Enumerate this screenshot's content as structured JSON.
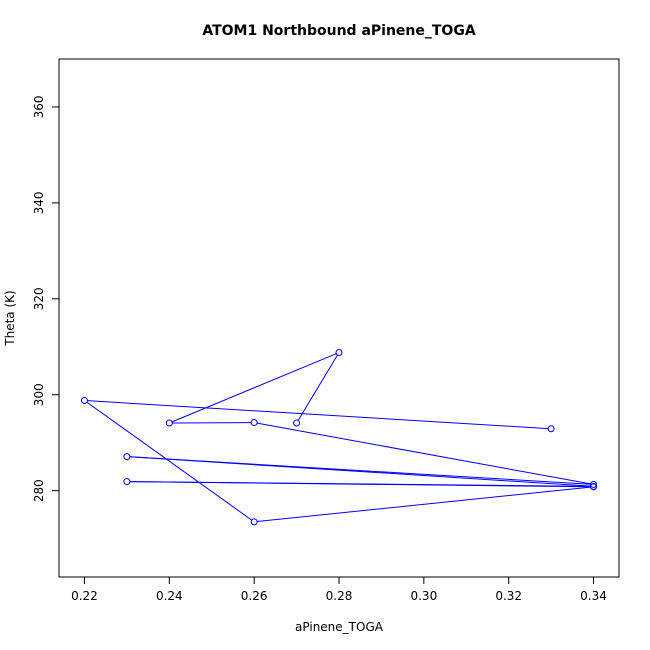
{
  "chart_data": {
    "type": "line",
    "title": "ATOM1 Northbound aPinene_TOGA",
    "xlabel": "aPinene_TOGA",
    "ylabel": "Theta (K)",
    "xlim": [
      0.214,
      0.346
    ],
    "ylim": [
      262,
      370
    ],
    "xticks": [
      "0.22",
      "0.24",
      "0.26",
      "0.28",
      "0.30",
      "0.32",
      "0.34"
    ],
    "yticks": [
      "280",
      "300",
      "320",
      "340",
      "360"
    ],
    "xtick_values": [
      0.22,
      0.24,
      0.26,
      0.28,
      0.3,
      0.32,
      0.34
    ],
    "ytick_values": [
      280,
      300,
      320,
      340,
      360
    ],
    "grid": false,
    "marker": "open-circle",
    "color": "#0000ff",
    "series": [
      {
        "x": [
          0.27,
          0.28,
          0.24,
          0.26,
          0.34,
          0.23,
          0.34,
          0.23,
          0.34,
          0.26,
          0.22,
          0.33
        ],
        "y": [
          294.1,
          308.8,
          294.1,
          294.2,
          281.3,
          287.1,
          280.9,
          281.9,
          280.8,
          273.5,
          298.8,
          292.9
        ]
      }
    ]
  }
}
